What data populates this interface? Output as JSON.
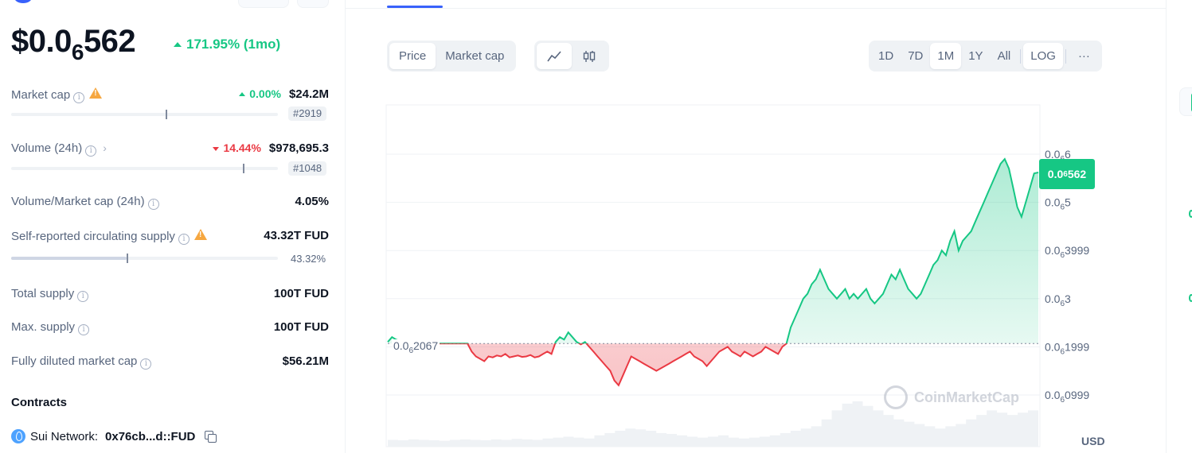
{
  "coin": {
    "price_prefix": "$0.0",
    "price_sub": "6",
    "price_suffix": "562",
    "change_pct": "171.95% (1mo)"
  },
  "stats": {
    "market_cap": {
      "label": "Market cap",
      "change": "0.00%",
      "value": "$24.2M",
      "rank": "#2919",
      "bar_fraction": 0.58
    },
    "volume": {
      "label": "Volume (24h)",
      "change": "14.44%",
      "value": "$978,695.3",
      "rank": "#1048",
      "bar_fraction": 0.87
    },
    "vol_mcap": {
      "label": "Volume/Market cap (24h)",
      "value": "4.05%"
    },
    "circ_supply": {
      "label": "Self-reported circulating supply",
      "value": "43.32T FUD",
      "pct": "43.32%",
      "fraction": 0.4332
    },
    "total_supply": {
      "label": "Total supply",
      "value": "100T FUD"
    },
    "max_supply": {
      "label": "Max. supply",
      "value": "100T FUD"
    },
    "fdmc": {
      "label": "Fully diluted market cap",
      "value": "$56.21M"
    }
  },
  "contracts": {
    "title": "Contracts",
    "network": "Sui Network:",
    "address": "0x76cb...d::FUD"
  },
  "toolbar": {
    "metric_tabs": [
      "Price",
      "Market cap"
    ],
    "ranges": [
      "1D",
      "7D",
      "1M",
      "1Y",
      "All"
    ],
    "log_label": "LOG",
    "more_label": "···"
  },
  "chart": {
    "current_tag_prefix": "0.0",
    "current_tag_sub": "6",
    "current_tag_suffix": "562",
    "baseline_prefix": "0.0",
    "baseline_sub": "6",
    "baseline_suffix": "2067",
    "currency": "USD",
    "watermark": "CoinMarketCap",
    "colors": {
      "up": "#16c784",
      "down": "#ea3943"
    }
  },
  "chart_data": {
    "type": "area",
    "title": "",
    "ylabel": "",
    "y_ticks": [
      {
        "prefix": "0.0",
        "sub": "6",
        "suffix": "0999",
        "value": 0.0999
      },
      {
        "prefix": "0.0",
        "sub": "6",
        "suffix": "1999",
        "value": 0.1999
      },
      {
        "prefix": "0.0",
        "sub": "6",
        "suffix": "3",
        "value": 0.3
      },
      {
        "prefix": "0.0",
        "sub": "6",
        "suffix": "3999",
        "value": 0.3999
      },
      {
        "prefix": "0.0",
        "sub": "6",
        "suffix": "5",
        "value": 0.5
      },
      {
        "prefix": "0.0",
        "sub": "6",
        "suffix": "6",
        "value": 0.6
      }
    ],
    "y_unit_note": "values in units of 1e-6 USD",
    "ylim": [
      0.0,
      0.62
    ],
    "baseline": 0.2067,
    "series": [
      {
        "values": [
          0.21,
          0.22,
          0.215,
          0.212,
          0.21,
          0.205,
          0.2067,
          0.2067,
          0.2067,
          0.2067,
          0.2067,
          0.2067,
          0.2067,
          0.2067,
          0.2067,
          0.2067,
          0.2067,
          0.2067,
          0.2067,
          0.2067,
          0.19,
          0.18,
          0.175,
          0.17,
          0.18,
          0.178,
          0.182,
          0.18,
          0.185,
          0.178,
          0.18,
          0.182,
          0.179,
          0.18,
          0.183,
          0.178,
          0.18,
          0.185,
          0.19,
          0.185,
          0.21,
          0.22,
          0.215,
          0.23,
          0.22,
          0.21,
          0.205,
          0.21,
          0.2,
          0.19,
          0.18,
          0.17,
          0.16,
          0.15,
          0.13,
          0.12,
          0.14,
          0.16,
          0.18,
          0.175,
          0.17,
          0.165,
          0.16,
          0.155,
          0.15,
          0.155,
          0.16,
          0.165,
          0.17,
          0.175,
          0.18,
          0.185,
          0.19,
          0.18,
          0.175,
          0.17,
          0.16,
          0.17,
          0.18,
          0.19,
          0.195,
          0.2,
          0.19,
          0.185,
          0.18,
          0.19,
          0.185,
          0.18,
          0.185,
          0.19,
          0.2,
          0.195,
          0.19,
          0.185,
          0.2,
          0.2067,
          0.24,
          0.26,
          0.28,
          0.3,
          0.31,
          0.33,
          0.34,
          0.36,
          0.34,
          0.32,
          0.31,
          0.3,
          0.31,
          0.32,
          0.3,
          0.31,
          0.3,
          0.31,
          0.32,
          0.3,
          0.29,
          0.3,
          0.31,
          0.33,
          0.35,
          0.34,
          0.36,
          0.34,
          0.32,
          0.31,
          0.3,
          0.31,
          0.33,
          0.35,
          0.37,
          0.38,
          0.4,
          0.39,
          0.42,
          0.44,
          0.4,
          0.42,
          0.43,
          0.44,
          0.46,
          0.48,
          0.5,
          0.52,
          0.54,
          0.56,
          0.58,
          0.59,
          0.57,
          0.53,
          0.49,
          0.47,
          0.5,
          0.53,
          0.56,
          0.562
        ]
      }
    ],
    "volume": [
      0.15,
      0.14,
      0.16,
      0.15,
      0.14,
      0.13,
      0.15,
      0.16,
      0.15,
      0.14,
      0.16,
      0.15,
      0.17,
      0.16,
      0.15,
      0.18,
      0.2,
      0.22,
      0.2,
      0.18,
      0.25,
      0.3,
      0.35,
      0.4,
      0.38,
      0.35,
      0.3,
      0.28,
      0.25,
      0.22,
      0.2,
      0.22,
      0.25,
      0.2,
      0.18,
      0.2,
      0.22,
      0.25,
      0.3,
      0.35,
      0.4,
      0.45,
      0.6,
      0.8,
      0.95,
      1.0,
      0.9,
      0.8,
      0.7,
      0.6,
      0.55,
      0.5,
      0.45,
      0.4,
      0.45,
      0.5,
      0.6,
      0.7,
      0.8,
      0.75,
      0.7,
      0.75,
      0.8
    ]
  }
}
